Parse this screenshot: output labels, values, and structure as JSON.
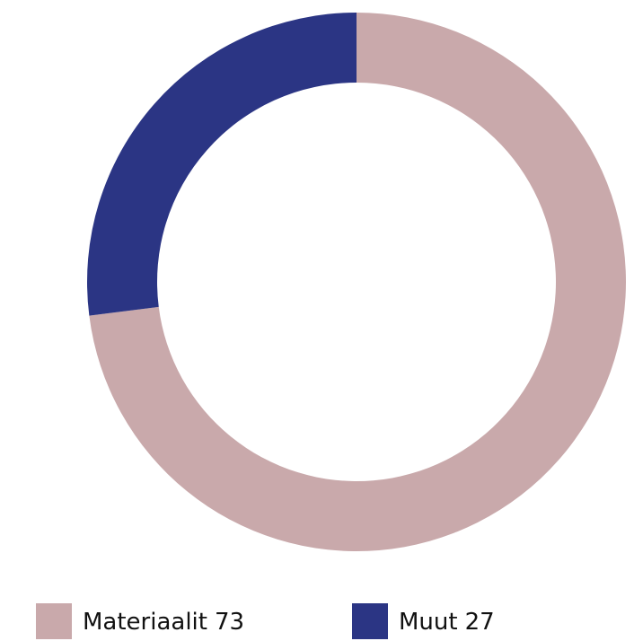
{
  "chart_data": {
    "type": "pie",
    "categories": [
      "Materiaalit",
      "Muut"
    ],
    "values": [
      73,
      27
    ],
    "colors": [
      "#c9a9ab",
      "#2b3584"
    ],
    "donut": true
  }
}
